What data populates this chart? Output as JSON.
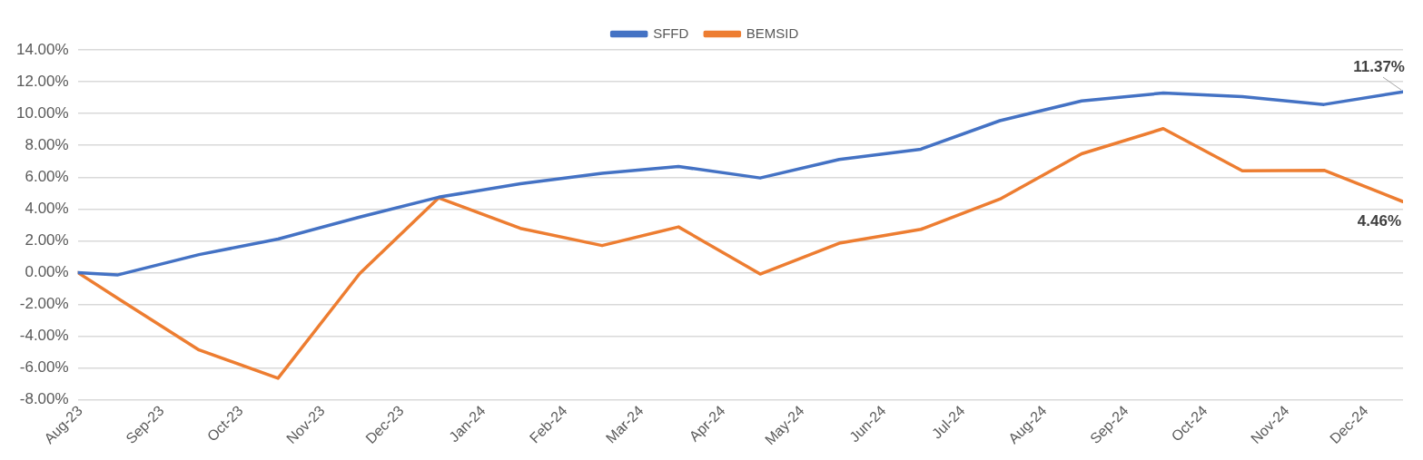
{
  "chart_data": {
    "type": "line",
    "legend": "top",
    "grid": "y",
    "marker": "none",
    "line_style": "solid",
    "x": [
      "2023-07-31",
      "2023-08-15",
      "2023-09-15",
      "2023-10-15",
      "2023-11-15",
      "2023-12-15",
      "2024-01-15",
      "2024-02-15",
      "2024-03-15",
      "2024-04-15",
      "2024-05-15",
      "2024-06-15",
      "2024-07-15",
      "2024-08-15",
      "2024-09-15",
      "2024-10-15",
      "2024-11-15",
      "2024-12-15"
    ],
    "xlim": [
      "2023-07-31",
      "2024-12-15"
    ],
    "xticks": [
      {
        "value": "2023-08-01",
        "label": "Aug-23"
      },
      {
        "value": "2023-09-01",
        "label": "Sep-23"
      },
      {
        "value": "2023-10-01",
        "label": "Oct-23"
      },
      {
        "value": "2023-11-01",
        "label": "Nov-23"
      },
      {
        "value": "2023-12-01",
        "label": "Dec-23"
      },
      {
        "value": "2024-01-01",
        "label": "Jan-24"
      },
      {
        "value": "2024-02-01",
        "label": "Feb-24"
      },
      {
        "value": "2024-03-01",
        "label": "Mar-24"
      },
      {
        "value": "2024-04-01",
        "label": "Apr-24"
      },
      {
        "value": "2024-05-01",
        "label": "May-24"
      },
      {
        "value": "2024-06-01",
        "label": "Jun-24"
      },
      {
        "value": "2024-07-01",
        "label": "Jul-24"
      },
      {
        "value": "2024-08-01",
        "label": "Aug-24"
      },
      {
        "value": "2024-09-01",
        "label": "Sep-24"
      },
      {
        "value": "2024-10-01",
        "label": "Oct-24"
      },
      {
        "value": "2024-11-01",
        "label": "Nov-24"
      },
      {
        "value": "2024-12-01",
        "label": "Dec-24"
      }
    ],
    "ylim": [
      -8,
      14
    ],
    "yticks": [
      {
        "value": -8,
        "label": "-8.00%"
      },
      {
        "value": -6,
        "label": "-6.00%"
      },
      {
        "value": -4,
        "label": "-4.00%"
      },
      {
        "value": -2,
        "label": "-2.00%"
      },
      {
        "value": 0,
        "label": "0.00%"
      },
      {
        "value": 2,
        "label": "2.00%"
      },
      {
        "value": 4,
        "label": "4.00%"
      },
      {
        "value": 6,
        "label": "6.00%"
      },
      {
        "value": 8,
        "label": "8.00%"
      },
      {
        "value": 10,
        "label": "10.00%"
      },
      {
        "value": 12,
        "label": "12.00%"
      },
      {
        "value": 14,
        "label": "14.00%"
      }
    ],
    "series": [
      {
        "name": "SFFD",
        "color": "#4472c4",
        "values": [
          0,
          -0.15,
          1.13,
          2.11,
          3.49,
          4.74,
          5.59,
          6.24,
          6.67,
          5.95,
          7.11,
          7.76,
          9.55,
          10.79,
          11.29,
          11.06,
          10.57,
          11.37
        ],
        "value_labels": [
          null,
          null,
          null,
          null,
          null,
          null,
          null,
          null,
          null,
          null,
          null,
          null,
          null,
          null,
          null,
          null,
          null,
          "11.37%"
        ]
      },
      {
        "name": "BEMSID",
        "color": "#ed7d31",
        "values": [
          0,
          -1.6,
          -4.86,
          -6.64,
          -0.06,
          4.7,
          2.78,
          1.7,
          2.87,
          -0.09,
          1.85,
          2.72,
          4.62,
          7.47,
          9.05,
          6.4,
          6.43,
          4.46
        ],
        "value_labels": [
          null,
          null,
          null,
          null,
          null,
          null,
          null,
          null,
          null,
          null,
          null,
          null,
          null,
          null,
          null,
          null,
          null,
          "4.46%"
        ]
      }
    ]
  }
}
